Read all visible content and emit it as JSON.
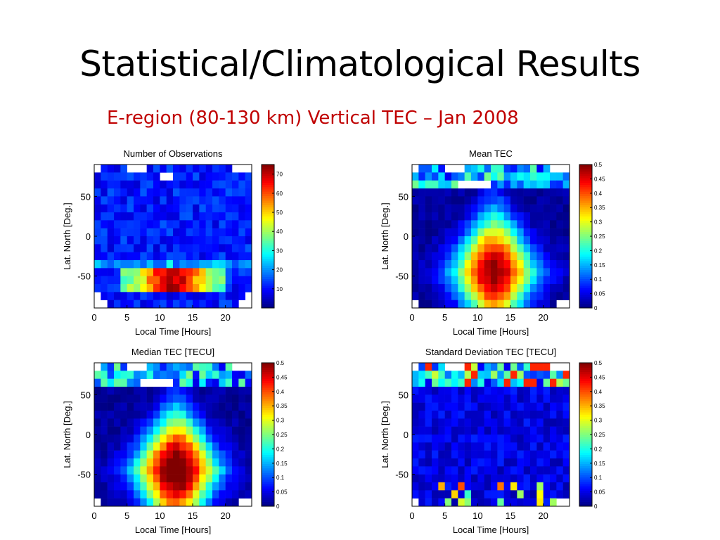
{
  "slide": {
    "title": "Statistical/Climatological Results",
    "subtitle": "E-region (80-130 km) Vertical TEC – Jan 2008",
    "subtitle_color": "#c00000"
  },
  "chart_data": [
    {
      "type": "heatmap",
      "title": "Number of Observations",
      "xlabel": "Local Time [Hours]",
      "ylabel": "Lat. North [Deg.]",
      "xlim": [
        0,
        24
      ],
      "ylim": [
        -90,
        90
      ],
      "xticks": [
        0,
        5,
        10,
        15,
        20
      ],
      "yticks": [
        50,
        0,
        -50
      ],
      "clim": [
        0,
        75
      ],
      "colorbar_ticks": [
        10,
        20,
        30,
        40,
        50,
        60,
        70
      ],
      "colormap": "jet",
      "grid_cols": 24,
      "grid_rows": 18,
      "summary": "Mostly 5-15 observations; band of 40-75 observations near -55 deg latitude between 5 and 18 h local time; gaps near the north pole."
    },
    {
      "type": "heatmap",
      "title": "Mean TEC",
      "xlabel": "Local Time [Hours]",
      "ylabel": "Lat. North [Deg.]",
      "xlim": [
        0,
        24
      ],
      "ylim": [
        -90,
        90
      ],
      "xticks": [
        0,
        5,
        10,
        15,
        20
      ],
      "yticks": [
        50,
        0,
        -50
      ],
      "clim": [
        0,
        0.5
      ],
      "colorbar_ticks": [
        0,
        0.05,
        0.1,
        0.15,
        0.2,
        0.25,
        0.3,
        0.35,
        0.4,
        0.45,
        0.5
      ],
      "colormap": "jet",
      "grid_cols": 24,
      "grid_rows": 18,
      "summary": "Daytime maximum (~0.45-0.5 TECU) centered near 12 h local time and -50 deg latitude, decreasing to ~0.02 TECU at night."
    },
    {
      "type": "heatmap",
      "title": "Median TEC [TECU]",
      "xlabel": "Local Time [Hours]",
      "ylabel": "Lat. North [Deg.]",
      "xlim": [
        0,
        24
      ],
      "ylim": [
        -90,
        90
      ],
      "xticks": [
        0,
        5,
        10,
        15,
        20
      ],
      "yticks": [
        50,
        0,
        -50
      ],
      "clim": [
        0,
        0.5
      ],
      "colorbar_ticks": [
        0,
        0.05,
        0.1,
        0.15,
        0.2,
        0.25,
        0.3,
        0.35,
        0.4,
        0.45,
        0.5
      ],
      "colormap": "jet",
      "grid_cols": 24,
      "grid_rows": 18,
      "summary": "Similar pattern to Mean TEC with daytime maximum ~0.5 TECU near 12 h and -50 deg latitude."
    },
    {
      "type": "heatmap",
      "title": "Standard Deviation TEC [TECU]",
      "xlabel": "Local Time [Hours]",
      "ylabel": "Lat. North [Deg.]",
      "xlim": [
        0,
        24
      ],
      "ylim": [
        -90,
        90
      ],
      "xticks": [
        0,
        5,
        10,
        15,
        20
      ],
      "yticks": [
        50,
        0,
        -50
      ],
      "clim": [
        0,
        0.5
      ],
      "colorbar_ticks": [
        0,
        0.05,
        0.1,
        0.15,
        0.2,
        0.25,
        0.3,
        0.35,
        0.4,
        0.45,
        0.5
      ],
      "colormap": "jet",
      "grid_cols": 24,
      "grid_rows": 18,
      "summary": "Mostly low (~0.02-0.08 TECU) with scattered higher values (up to ~0.45) at high northern latitudes."
    }
  ]
}
